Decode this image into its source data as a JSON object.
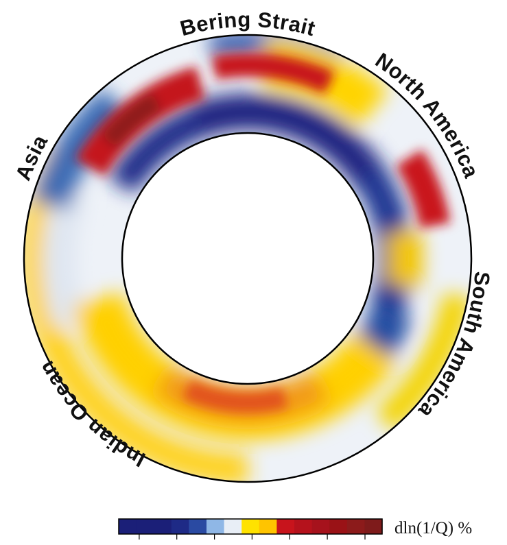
{
  "figure": {
    "regions": [
      {
        "label": "Bering Strait"
      },
      {
        "label": "North America"
      },
      {
        "label": "South America"
      },
      {
        "label": "Indian Ocean"
      },
      {
        "label": "Asia"
      }
    ],
    "colorbar": {
      "label": "dln(1/Q) %",
      "colors": [
        "#1b1f78",
        "#1b1f78",
        "#1b1f78",
        "#1e2a86",
        "#2a4aa2",
        "#8fb7e6",
        "#e8eef6",
        "#ffe200",
        "#ffc400",
        "#c8141c",
        "#b5121c",
        "#a6121c",
        "#9a1216",
        "#8c1b1b",
        "#7e1b1b"
      ]
    },
    "background_color": "#ffffff",
    "outline_color": "#000000"
  }
}
